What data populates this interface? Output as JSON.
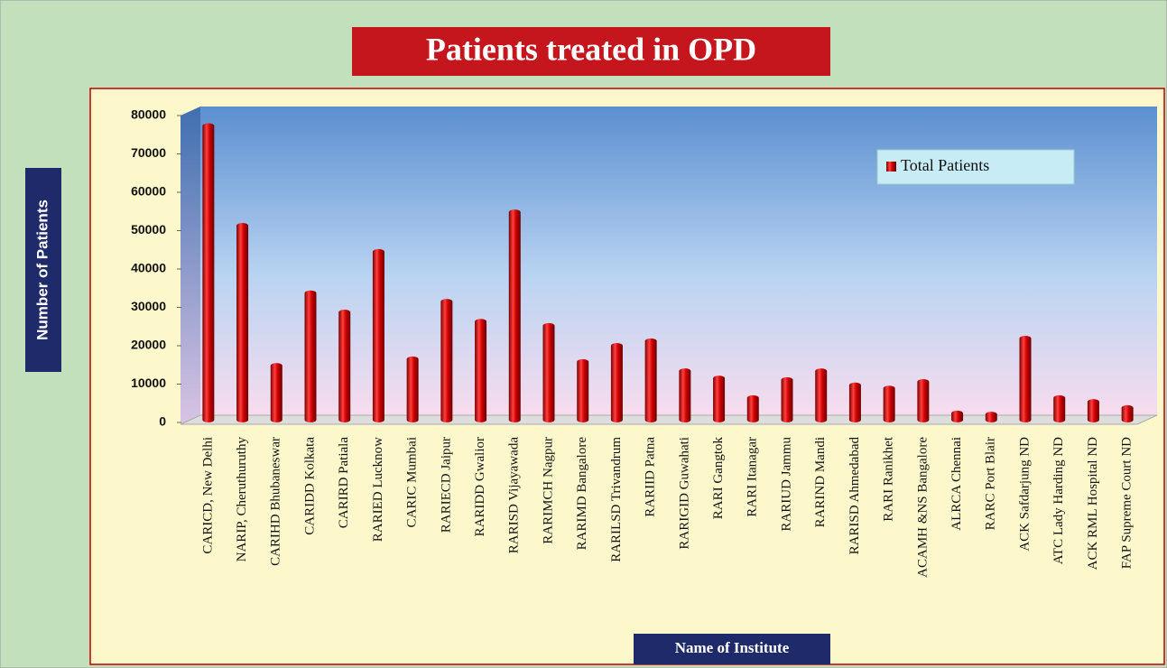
{
  "chart_data": {
    "type": "bar",
    "title": "Patients treated in OPD",
    "ylabel": "Number of Patients",
    "xlabel": "Name  of Institute",
    "categories": [
      "CARICD, New Delhi",
      "NARIP, Cheruthuruthy",
      "CARIHD Bhubaneswar",
      "CARIDD Kolkata",
      "CARIRD Patiala",
      "RARIED Lucknow",
      "CARIC Mumbai",
      "RARIECD Jaipur",
      "RARIDD Gwalior",
      "RARISD Vijayawada",
      "RARIMCH Nagpur",
      "RARIMD Bangalore",
      "RARILSD Trivandrum",
      "RARIID Patna",
      "RARIGID Guwahati",
      "RARI Gangtok",
      "RARI Itanagar",
      "RARIUD Jammu",
      "RARIND Mandi",
      "RARISD Ahmedabad",
      "RARI Ranikhet",
      "ACAMH &NS Bangalore",
      "ALRCA Chennai",
      "RARC Port Blair",
      "ACK Safdarjung ND",
      "ATC Lady Harding ND",
      "ACK RML Hospital ND",
      "FAP Supreme Court ND"
    ],
    "series": [
      {
        "name": "Total Patients",
        "color": "#c00000",
        "values": [
          78000,
          52000,
          15500,
          34400,
          29400,
          45200,
          17200,
          32200,
          27000,
          55500,
          25900,
          16500,
          20700,
          21900,
          14100,
          12200,
          7100,
          11800,
          14100,
          10400,
          9600,
          11300,
          3100,
          2800,
          22600,
          7100,
          6100,
          4500
        ]
      }
    ],
    "ylim": [
      0,
      80000
    ],
    "yticks": [
      0,
      10000,
      20000,
      30000,
      40000,
      50000,
      60000,
      70000,
      80000
    ],
    "legend": "upper right"
  }
}
